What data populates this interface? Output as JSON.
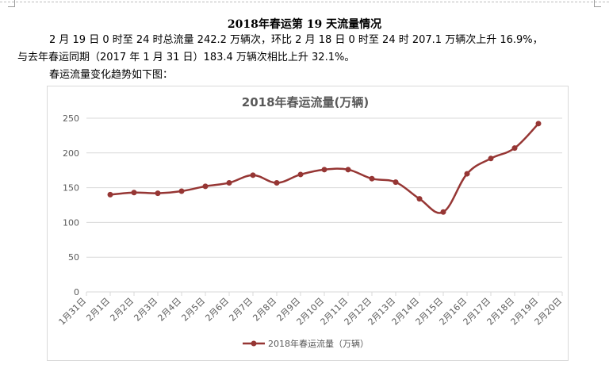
{
  "document": {
    "title": "2018年春运第 19 天流量情况",
    "paragraph_line1": "2 月 19 日 0 时至 24 时总流量 242.2 万辆次，环比 2 月 18 日 0 时至 24 时 207.1 万辆次上升 16.9%，",
    "paragraph_line2": "与去年春运同期（2017 年 1 月 31 日）183.4 万辆次相比上升 32.1%。",
    "paragraph_line3": "春运流量变化趋势如下图："
  },
  "colors": {
    "series": "#963634",
    "grid": "#d9d9d9",
    "axis_text": "#595959",
    "title_text": "#595959"
  },
  "chart_data": {
    "type": "line",
    "title": "2018年春运流量(万辆)",
    "xlabel": "",
    "ylabel": "",
    "ylim": [
      0,
      250
    ],
    "yticks": [
      0,
      50,
      100,
      150,
      200,
      250
    ],
    "grid": true,
    "legend_position": "bottom",
    "categories": [
      "1月31日",
      "2月1日",
      "2月2日",
      "2月3日",
      "2月4日",
      "2月5日",
      "2月6日",
      "2月7日",
      "2月8日",
      "2月9日",
      "2月10日",
      "2月11日",
      "2月12日",
      "2月13日",
      "2月14日",
      "2月15日",
      "2月16日",
      "2月17日",
      "2月18日",
      "2月19日",
      "2月20日"
    ],
    "series": [
      {
        "name": "2018年春运流量（万辆）",
        "values": [
          null,
          140,
          143,
          142,
          145,
          152,
          157,
          168,
          157,
          169,
          176,
          176,
          163,
          158,
          134,
          115,
          170,
          192,
          207,
          242.2,
          null
        ]
      }
    ]
  }
}
